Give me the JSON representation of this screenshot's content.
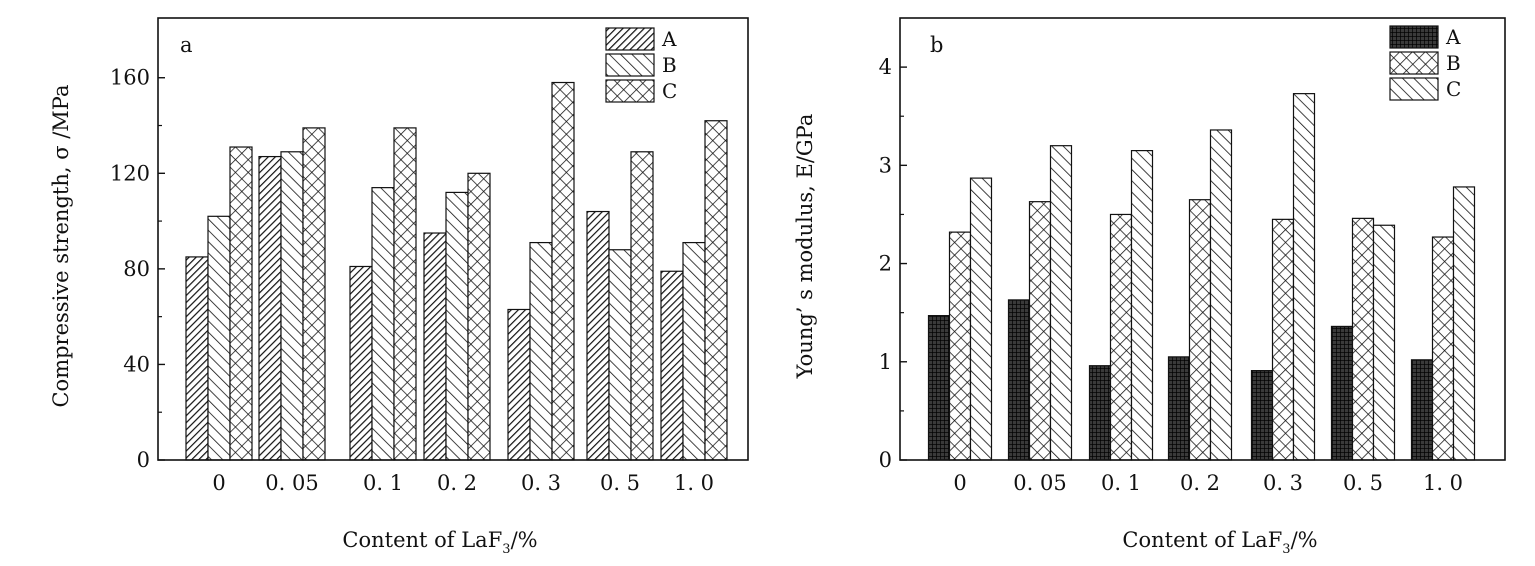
{
  "chart_data": [
    {
      "type": "bar",
      "panel_label": "a",
      "categories": [
        "0",
        "0.05",
        "0.1",
        "0.2",
        "0.3",
        "0.5",
        "1.0"
      ],
      "category_labels": [
        "0",
        "0. 05",
        "0. 1",
        "0. 2",
        "0. 3",
        "0. 5",
        "1. 0"
      ],
      "series": [
        {
          "name": "A",
          "pattern": "dense-diagonal",
          "values": [
            85,
            127,
            81,
            95,
            63,
            104,
            79
          ]
        },
        {
          "name": "B",
          "pattern": "back-diagonal",
          "values": [
            102,
            129,
            114,
            112,
            91,
            88,
            91
          ]
        },
        {
          "name": "C",
          "pattern": "crosshatch",
          "values": [
            131,
            139,
            139,
            120,
            158,
            129,
            142
          ]
        }
      ],
      "xlabel_main": "Content of LaF",
      "xlabel_sub": "3",
      "xlabel_tail": "/%",
      "ylabel": "Compressive strength, σ /MPa",
      "ylim": [
        0,
        185
      ],
      "yticks": [
        0,
        40,
        80,
        120,
        160
      ],
      "legend_position": "top-right"
    },
    {
      "type": "bar",
      "panel_label": "b",
      "categories": [
        "0",
        "0.05",
        "0.1",
        "0.2",
        "0.3",
        "0.5",
        "1.0"
      ],
      "category_labels": [
        "0",
        "0. 05",
        "0. 1",
        "0. 2",
        "0. 3",
        "0. 5",
        "1. 0"
      ],
      "series": [
        {
          "name": "A",
          "pattern": "dark-grid",
          "values": [
            1.47,
            1.63,
            0.96,
            1.05,
            0.91,
            1.36,
            1.02
          ]
        },
        {
          "name": "B",
          "pattern": "crosshatch",
          "values": [
            2.32,
            2.63,
            2.5,
            2.65,
            2.45,
            2.46,
            2.27
          ]
        },
        {
          "name": "C",
          "pattern": "back-diagonal",
          "values": [
            2.87,
            3.2,
            3.15,
            3.36,
            3.73,
            2.39,
            2.78
          ]
        }
      ],
      "xlabel_main": "Content of LaF",
      "xlabel_sub": "3",
      "xlabel_tail": "/%",
      "ylabel": "Young’ s modulus, E/GPa",
      "ylim": [
        0,
        4.5
      ],
      "yticks": [
        0,
        1,
        2,
        3,
        4
      ],
      "legend_position": "top-right"
    }
  ]
}
